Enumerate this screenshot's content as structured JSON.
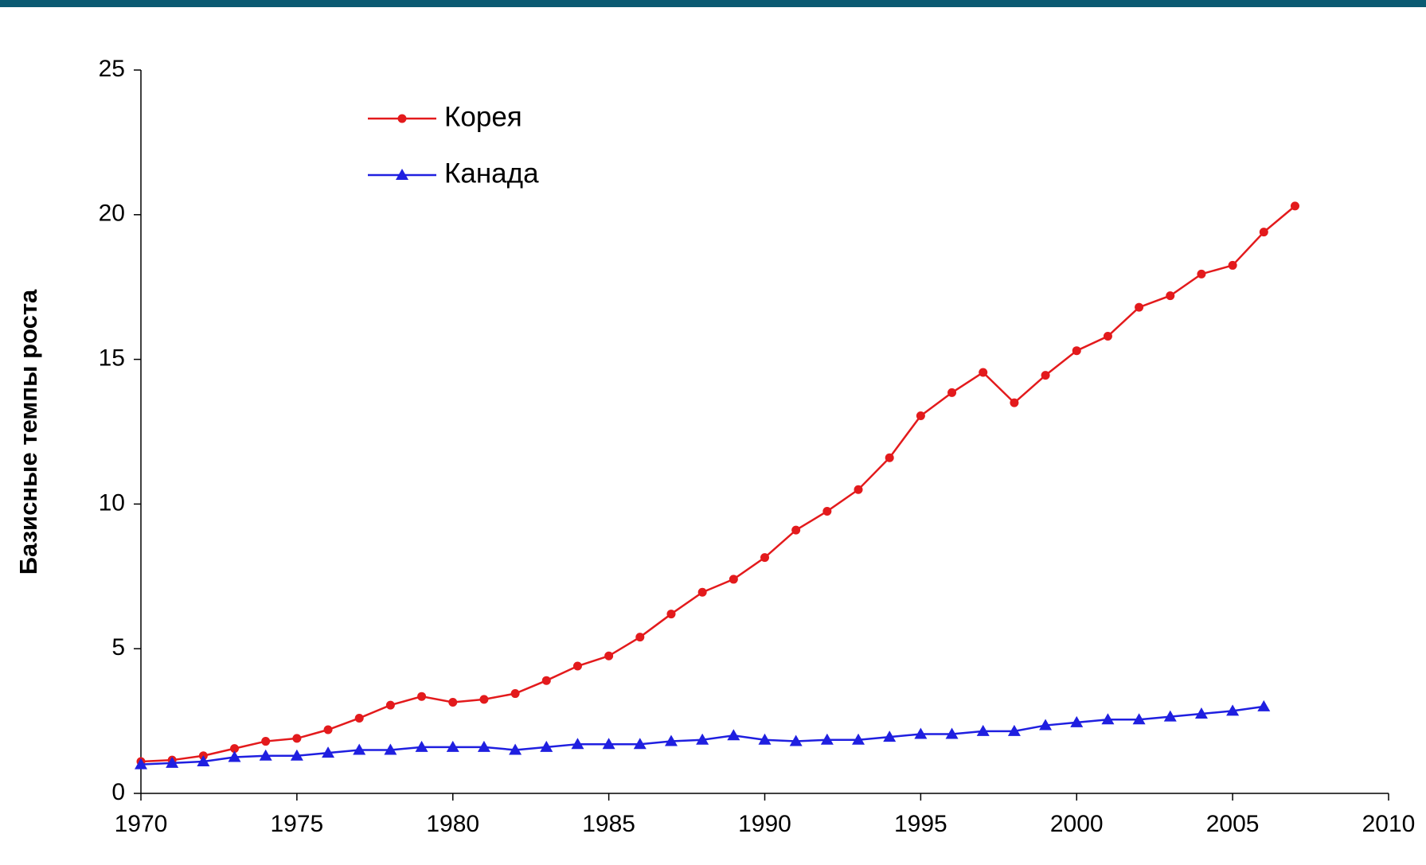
{
  "chart_data": {
    "type": "line",
    "y_label": "Базисные темпы роста",
    "xlim": [
      1970,
      2010
    ],
    "xticks": [
      1970,
      1975,
      1980,
      1985,
      1990,
      1995,
      2000,
      2005,
      2010
    ],
    "ylim": [
      0,
      25
    ],
    "yticks": [
      0,
      5,
      10,
      15,
      20,
      25
    ],
    "legend": "upper left",
    "series": [
      {
        "name": "Корея",
        "color": "#e31a1c",
        "marker": "circle",
        "x": [
          1970,
          1971,
          1972,
          1973,
          1974,
          1975,
          1976,
          1977,
          1978,
          1979,
          1980,
          1981,
          1982,
          1983,
          1984,
          1985,
          1986,
          1987,
          1988,
          1989,
          1990,
          1991,
          1992,
          1993,
          1994,
          1995,
          1996,
          1997,
          1998,
          1999,
          2000,
          2001,
          2002,
          2003,
          2004,
          2005,
          2006,
          2007
        ],
        "values": [
          1.1,
          1.15,
          1.3,
          1.55,
          1.8,
          1.9,
          2.2,
          2.6,
          3.05,
          3.35,
          3.15,
          3.25,
          3.45,
          3.9,
          4.4,
          4.75,
          5.4,
          6.2,
          6.95,
          7.4,
          8.15,
          9.1,
          9.75,
          10.5,
          11.6,
          13.05,
          13.85,
          14.55,
          13.5,
          14.45,
          15.3,
          15.8,
          16.8,
          17.2,
          17.95,
          18.25,
          19.4,
          20.3
        ]
      },
      {
        "name": "Канада",
        "color": "#1f1fe0",
        "marker": "triangle",
        "x": [
          1970,
          1971,
          1972,
          1973,
          1974,
          1975,
          1976,
          1977,
          1978,
          1979,
          1980,
          1981,
          1982,
          1983,
          1984,
          1985,
          1986,
          1987,
          1988,
          1989,
          1990,
          1991,
          1992,
          1993,
          1994,
          1995,
          1996,
          1997,
          1998,
          1999,
          2000,
          2001,
          2002,
          2003,
          2004,
          2005,
          2006
        ],
        "values": [
          1.0,
          1.05,
          1.1,
          1.25,
          1.3,
          1.3,
          1.4,
          1.5,
          1.5,
          1.6,
          1.6,
          1.6,
          1.5,
          1.6,
          1.7,
          1.7,
          1.7,
          1.8,
          1.85,
          2.0,
          1.85,
          1.8,
          1.85,
          1.85,
          1.95,
          2.05,
          2.05,
          2.15,
          2.15,
          2.35,
          2.45,
          2.55,
          2.55,
          2.65,
          2.75,
          2.85,
          3.0
        ]
      }
    ]
  }
}
